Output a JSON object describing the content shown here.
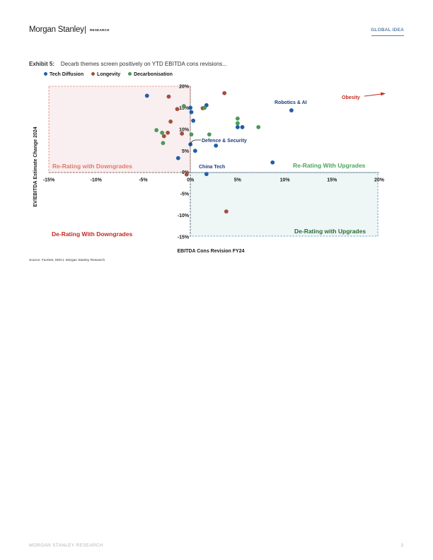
{
  "header": {
    "brand": "Morgan Stanley",
    "separator": "|",
    "section": "RESEARCH",
    "tag": "GLOBAL IDEA"
  },
  "exhibit": {
    "label": "Exhibit 5:",
    "title": "Decarb themes screen positively on YTD EBITDA cons revisions..."
  },
  "colors": {
    "tech_diffusion": "#1f5fa8",
    "longevity": "#a1503a",
    "decarbonisation": "#4a9a5a",
    "re_rating_downgrades": "#e07a68",
    "re_rating_upgrades": "#4aa55a",
    "de_rating_downgrades": "#c42a1f",
    "de_rating_upgrades": "#2e6b3a",
    "obesity": "#c42a1f",
    "label_navy": "#1f3d7a"
  },
  "chart_data": {
    "type": "scatter",
    "title": "",
    "xlabel": "EBITDA Cons Revision FY24",
    "ylabel": "EV/EBITDA Estimate Change 2024",
    "xlim": [
      -15,
      20
    ],
    "ylim": [
      -15,
      20
    ],
    "x_ticks": [
      "-15%",
      "-10%",
      "-5%",
      "0%",
      "5%",
      "10%",
      "15%",
      "20%"
    ],
    "x_tick_values": [
      -15,
      -10,
      -5,
      0,
      5,
      10,
      15,
      20
    ],
    "y_ticks": [
      "20%",
      "15%",
      "10%",
      "5%",
      "0%",
      "-5%",
      "-10%",
      "-15%"
    ],
    "y_tick_values": [
      20,
      15,
      10,
      5,
      0,
      -5,
      -10,
      -15
    ],
    "legend_position": "top-left",
    "series": [
      {
        "name": "Tech Diffusion",
        "color": "#1f5fa8",
        "points": [
          {
            "x": -4.6,
            "y": 17.8
          },
          {
            "x": 0.0,
            "y": 15.0
          },
          {
            "x": 0.1,
            "y": 14.0
          },
          {
            "x": 1.7,
            "y": 15.6
          },
          {
            "x": 0.3,
            "y": 12.0
          },
          {
            "x": 0.0,
            "y": 6.5
          },
          {
            "x": 0.5,
            "y": 5.0
          },
          {
            "x": -1.3,
            "y": 3.3
          },
          {
            "x": 2.7,
            "y": 6.2
          },
          {
            "x": 5.0,
            "y": 10.5
          },
          {
            "x": 5.5,
            "y": 10.5
          },
          {
            "x": 10.7,
            "y": 14.4
          },
          {
            "x": 8.7,
            "y": 2.3
          },
          {
            "x": 1.7,
            "y": -0.4
          }
        ]
      },
      {
        "name": "Longevity",
        "color": "#a1503a",
        "points": [
          {
            "x": -2.3,
            "y": 17.6
          },
          {
            "x": -1.4,
            "y": 14.7
          },
          {
            "x": 1.3,
            "y": 14.9
          },
          {
            "x": 3.6,
            "y": 18.4
          },
          {
            "x": -2.1,
            "y": 11.8
          },
          {
            "x": -2.4,
            "y": 9.2
          },
          {
            "x": -2.8,
            "y": 8.4
          },
          {
            "x": -0.9,
            "y": 9.0
          },
          {
            "x": -0.4,
            "y": -0.5
          },
          {
            "x": 3.8,
            "y": -9.1
          }
        ]
      },
      {
        "name": "Decarbonisation",
        "color": "#4a9a5a",
        "points": [
          {
            "x": -0.7,
            "y": 15.4
          },
          {
            "x": 1.5,
            "y": 15.0
          },
          {
            "x": -3.6,
            "y": 9.8
          },
          {
            "x": -3.0,
            "y": 9.2
          },
          {
            "x": -2.9,
            "y": 6.8
          },
          {
            "x": 0.1,
            "y": 8.8
          },
          {
            "x": 2.0,
            "y": 8.8
          },
          {
            "x": 5.0,
            "y": 12.5
          },
          {
            "x": 5.0,
            "y": 11.4
          },
          {
            "x": 7.2,
            "y": 10.5
          }
        ]
      }
    ],
    "annotations": [
      {
        "text": "Robotics & AI"
      },
      {
        "text": "Defence & Security"
      },
      {
        "text": "China Tech"
      },
      {
        "text": "Obesity"
      }
    ],
    "quadrant_labels": [
      {
        "text": "Re-Rating with Downgrades"
      },
      {
        "text": "Re-Rating With Upgrades"
      },
      {
        "text": "De-Rating With Downgrades"
      },
      {
        "text": "De-Rating with Upgrades"
      }
    ]
  },
  "source": "Source: FactSet, MSCI, Morgan Stanley Research",
  "footer": {
    "left": "MORGAN STANLEY RESEARCH",
    "page": "3"
  }
}
